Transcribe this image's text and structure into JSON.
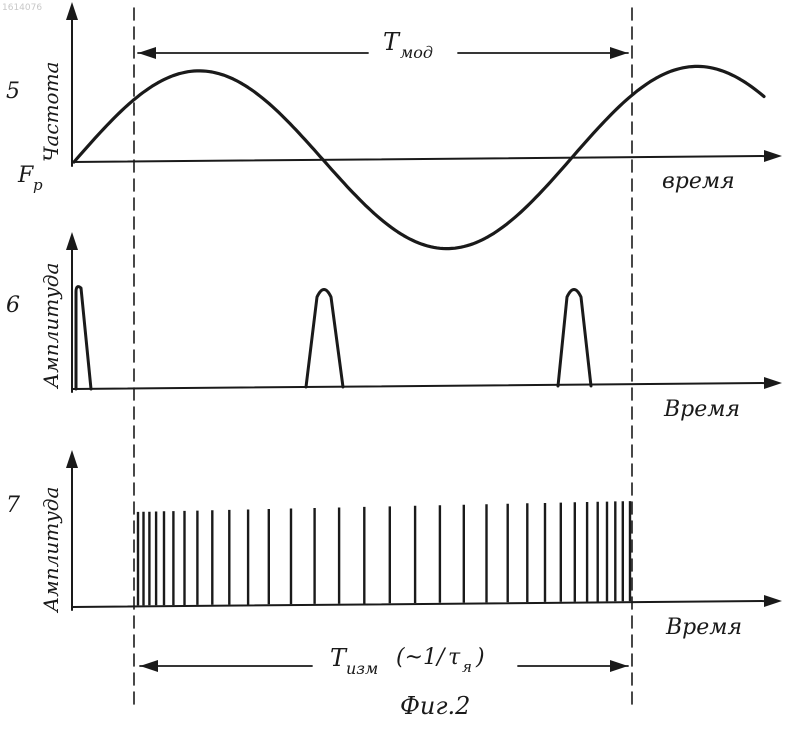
{
  "watermark": "1614076",
  "figure_caption": "Фиг.2",
  "period_labels": {
    "modulation": "T",
    "modulation_sub": "мод",
    "measurement": "T",
    "measurement_sub": "изм",
    "measurement_paren": "(~1/",
    "measurement_paren_sub": "я",
    "measurement_close": ")"
  },
  "panels": [
    {
      "number": "5",
      "ylabel": "Частота",
      "xlabel": "время",
      "origin_label": "F",
      "origin_sub": "р"
    },
    {
      "number": "6",
      "ylabel": "Амплитуда",
      "xlabel": "Время"
    },
    {
      "number": "7",
      "ylabel": "Амплитуда",
      "xlabel": "Время"
    }
  ],
  "waveforms": {
    "panel5": {
      "shape": "sine",
      "cycles_visible": 1.4
    },
    "panel6": {
      "shape": "pulses",
      "pulse_count": 3
    },
    "panel7": {
      "shape": "impulse train",
      "impulse_count": 32,
      "spacing": "chirped (dense left, sparse middle, dense right)"
    }
  }
}
